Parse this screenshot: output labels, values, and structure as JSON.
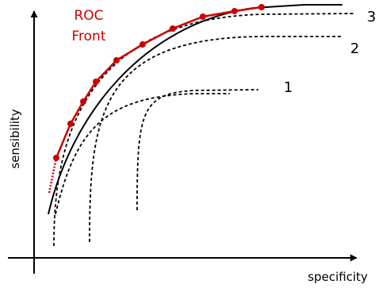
{
  "diagram": {
    "front_label": [
      "ROC",
      "Front"
    ],
    "front_color": "#cc0000",
    "axis_color": "#000000",
    "x_axis_label": "specificity",
    "y_axis_label": "sensibility",
    "curve_labels": [
      "1",
      "2",
      "3"
    ],
    "dashed_curve_count": 4,
    "front_point_count": 10
  }
}
